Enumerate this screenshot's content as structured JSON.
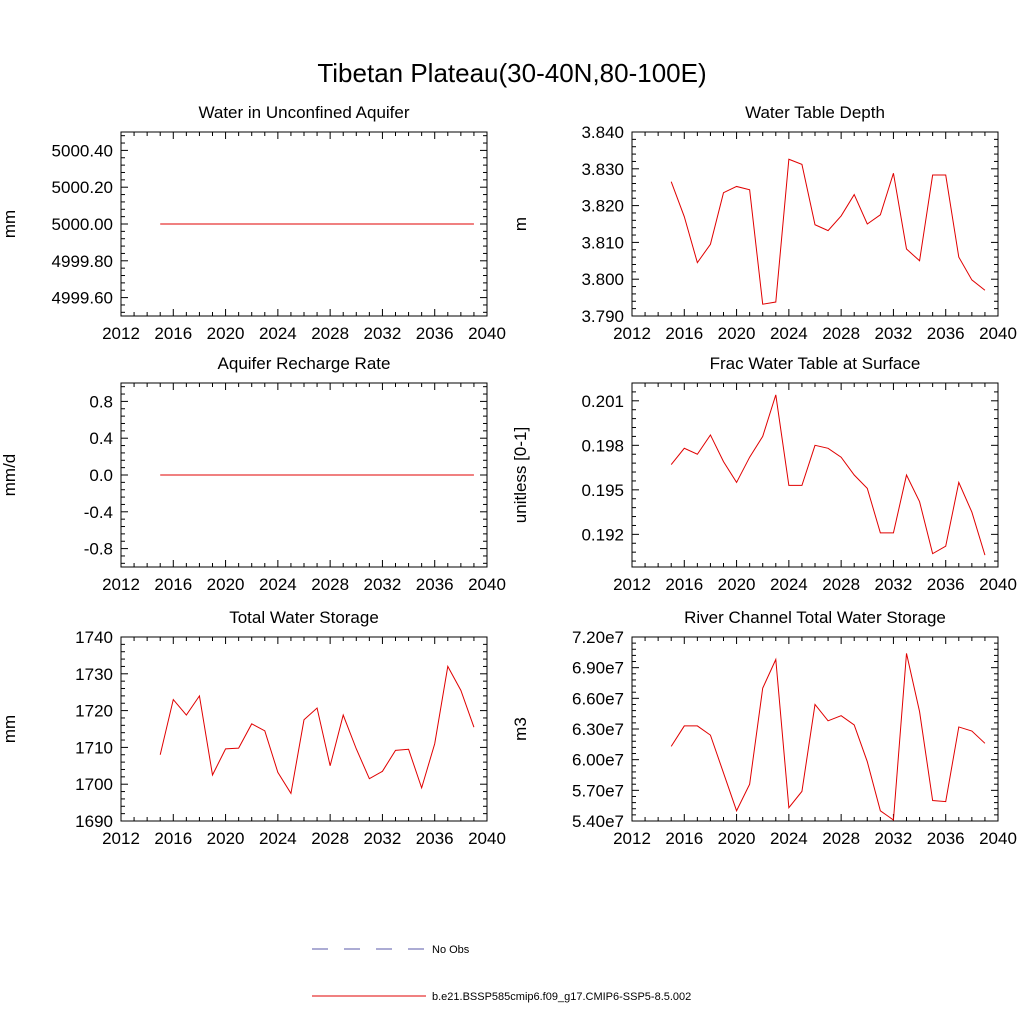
{
  "figure": {
    "title": "Tibetan Plateau(30-40N,80-100E)"
  },
  "legend": {
    "obs_label": "No Obs",
    "obs_color": "#5a5aa8",
    "model_label": "b.e21.BSSP585cmip6.f09_g17.CMIP6-SSP5-8.5.002",
    "model_color": "#e00000"
  },
  "chart_data": [
    {
      "type": "line",
      "title": "Water in Unconfined Aquifer",
      "ylabel": "mm",
      "xlim": [
        2012,
        2040
      ],
      "ylim": [
        4999.5,
        5000.5
      ],
      "xticks": [
        "2012",
        "2016",
        "2020",
        "2024",
        "2028",
        "2032",
        "2036",
        "2040"
      ],
      "yticks": [
        4999.6,
        4999.8,
        5000.0,
        5000.2,
        5000.4
      ],
      "yticklabels": [
        "4999.60",
        "4999.80",
        "5000.00",
        "5000.20",
        "5000.40"
      ],
      "x": [
        2015,
        2016,
        2017,
        2018,
        2019,
        2020,
        2021,
        2022,
        2023,
        2024,
        2025,
        2026,
        2027,
        2028,
        2029,
        2030,
        2031,
        2032,
        2033,
        2034,
        2035,
        2036,
        2037,
        2038,
        2039
      ],
      "series": [
        {
          "values": [
            5000.0,
            5000.0,
            5000.0,
            5000.0,
            5000.0,
            5000.0,
            5000.0,
            5000.0,
            5000.0,
            5000.0,
            5000.0,
            5000.0,
            5000.0,
            5000.0,
            5000.0,
            5000.0,
            5000.0,
            5000.0,
            5000.0,
            5000.0,
            5000.0,
            5000.0,
            5000.0,
            5000.0,
            5000.0
          ]
        }
      ]
    },
    {
      "type": "line",
      "title": "Water Table Depth",
      "ylabel": "m",
      "xlim": [
        2012,
        2040
      ],
      "ylim": [
        3.79,
        3.84
      ],
      "xticks": [
        "2012",
        "2016",
        "2020",
        "2024",
        "2028",
        "2032",
        "2036",
        "2040"
      ],
      "yticks": [
        3.79,
        3.8,
        3.81,
        3.82,
        3.83,
        3.84
      ],
      "yticklabels": [
        "3.790",
        "3.800",
        "3.810",
        "3.820",
        "3.830",
        "3.840"
      ],
      "x": [
        2015,
        2016,
        2017,
        2018,
        2019,
        2020,
        2021,
        2022,
        2023,
        2024,
        2025,
        2026,
        2027,
        2028,
        2029,
        2030,
        2031,
        2032,
        2033,
        2034,
        2035,
        2036,
        2037,
        2038,
        2039
      ],
      "series": [
        {
          "values": [
            3.8265,
            3.817,
            3.8045,
            3.8095,
            3.8235,
            3.8252,
            3.8243,
            3.7932,
            3.7938,
            3.8326,
            3.8312,
            3.8148,
            3.8132,
            3.8172,
            3.823,
            3.815,
            3.8175,
            3.8288,
            3.8082,
            3.805,
            3.8283,
            3.8283,
            3.806,
            3.7998,
            3.797
          ]
        }
      ]
    },
    {
      "type": "line",
      "title": "Aquifer Recharge Rate",
      "ylabel": "mm/d",
      "xlim": [
        2012,
        2040
      ],
      "ylim": [
        -1.0,
        1.0
      ],
      "xticks": [
        "2012",
        "2016",
        "2020",
        "2024",
        "2028",
        "2032",
        "2036",
        "2040"
      ],
      "yticks": [
        -0.8,
        -0.4,
        0.0,
        0.4,
        0.8
      ],
      "yticklabels": [
        "-0.8",
        "-0.4",
        "0.0",
        "0.4",
        "0.8"
      ],
      "x": [
        2015,
        2016,
        2017,
        2018,
        2019,
        2020,
        2021,
        2022,
        2023,
        2024,
        2025,
        2026,
        2027,
        2028,
        2029,
        2030,
        2031,
        2032,
        2033,
        2034,
        2035,
        2036,
        2037,
        2038,
        2039
      ],
      "series": [
        {
          "values": [
            0,
            0,
            0,
            0,
            0,
            0,
            0,
            0,
            0,
            0,
            0,
            0,
            0,
            0,
            0,
            0,
            0,
            0,
            0,
            0,
            0,
            0,
            0,
            0,
            0
          ]
        }
      ]
    },
    {
      "type": "line",
      "title": "Frac Water Table at Surface",
      "ylabel": "unitless [0-1]",
      "xlim": [
        2012,
        2040
      ],
      "ylim": [
        0.1898,
        0.2022
      ],
      "xticks": [
        "2012",
        "2016",
        "2020",
        "2024",
        "2028",
        "2032",
        "2036",
        "2040"
      ],
      "yticks": [
        0.192,
        0.195,
        0.198,
        0.201
      ],
      "yticklabels": [
        "0.192",
        "0.195",
        "0.198",
        "0.201"
      ],
      "x": [
        2015,
        2016,
        2017,
        2018,
        2019,
        2020,
        2021,
        2022,
        2023,
        2024,
        2025,
        2026,
        2027,
        2028,
        2029,
        2030,
        2031,
        2032,
        2033,
        2034,
        2035,
        2036,
        2037,
        2038,
        2039
      ],
      "series": [
        {
          "values": [
            0.1967,
            0.1978,
            0.1974,
            0.1987,
            0.1969,
            0.1955,
            0.1972,
            0.1986,
            0.2014,
            0.1953,
            0.1953,
            0.198,
            0.1978,
            0.1972,
            0.196,
            0.1951,
            0.1921,
            0.1921,
            0.196,
            0.1942,
            0.1907,
            0.1912,
            0.1955,
            0.1935,
            0.1906
          ]
        }
      ]
    },
    {
      "type": "line",
      "title": "Total Water Storage",
      "ylabel": "mm",
      "xlim": [
        2012,
        2040
      ],
      "ylim": [
        1690,
        1740
      ],
      "xticks": [
        "2012",
        "2016",
        "2020",
        "2024",
        "2028",
        "2032",
        "2036",
        "2040"
      ],
      "yticks": [
        1690,
        1700,
        1710,
        1720,
        1730,
        1740
      ],
      "yticklabels": [
        "1690",
        "1700",
        "1710",
        "1720",
        "1730",
        "1740"
      ],
      "x": [
        2015,
        2016,
        2017,
        2018,
        2019,
        2020,
        2021,
        2022,
        2023,
        2024,
        2025,
        2026,
        2027,
        2028,
        2029,
        2030,
        2031,
        2032,
        2033,
        2034,
        2035,
        2036,
        2037,
        2038,
        2039
      ],
      "series": [
        {
          "values": [
            1708.0,
            1723.0,
            1718.8,
            1724.0,
            1702.5,
            1709.6,
            1709.8,
            1716.4,
            1714.5,
            1703.2,
            1697.5,
            1717.5,
            1720.7,
            1705.0,
            1718.8,
            1709.6,
            1701.5,
            1703.5,
            1709.2,
            1709.5,
            1699.0,
            1711.0,
            1732.0,
            1725.5,
            1715.5
          ]
        }
      ]
    },
    {
      "type": "line",
      "title": "River Channel Total Water Storage",
      "ylabel": "m3",
      "xlim": [
        2012,
        2040
      ],
      "ylim": [
        54000000,
        72000000
      ],
      "xticks": [
        "2012",
        "2016",
        "2020",
        "2024",
        "2028",
        "2032",
        "2036",
        "2040"
      ],
      "yticks": [
        54000000,
        57000000,
        60000000,
        63000000,
        66000000,
        69000000,
        72000000
      ],
      "yticklabels": [
        "5.40e7",
        "5.70e7",
        "6.00e7",
        "6.30e7",
        "6.60e7",
        "6.90e7",
        "7.20e7"
      ],
      "x": [
        2015,
        2016,
        2017,
        2018,
        2019,
        2020,
        2021,
        2022,
        2023,
        2024,
        2025,
        2026,
        2027,
        2028,
        2029,
        2030,
        2031,
        2032,
        2033,
        2034,
        2035,
        2036,
        2037,
        2038,
        2039
      ],
      "series": [
        {
          "values": [
            61300000,
            63300000,
            63300000,
            62400000,
            58700000,
            55000000,
            57600000,
            67000000,
            69800000,
            55300000,
            56900000,
            65400000,
            63800000,
            64300000,
            63400000,
            59800000,
            55000000,
            54100000,
            70400000,
            64700000,
            56000000,
            55900000,
            63200000,
            62800000,
            61600000
          ]
        }
      ]
    }
  ]
}
